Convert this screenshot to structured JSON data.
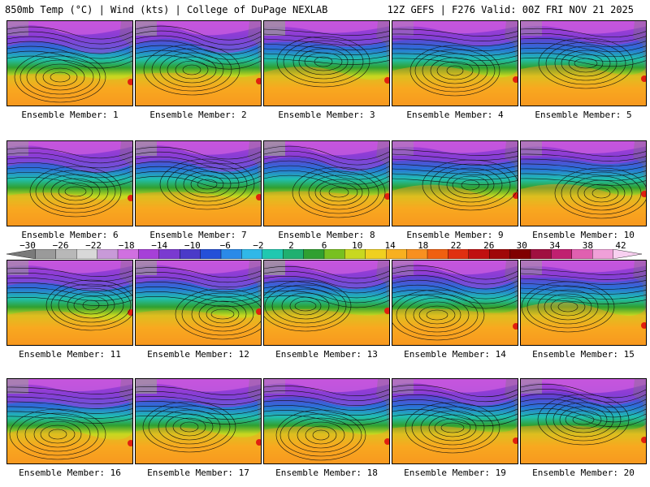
{
  "header": {
    "left": "850mb Temp (°C) | Wind (kts) | College of DuPage NEXLAB",
    "right": "12Z GEFS | F276 Valid: 00Z FRI NOV 21 2025"
  },
  "members": [
    "Ensemble Member: 1",
    "Ensemble Member: 2",
    "Ensemble Member: 3",
    "Ensemble Member: 4",
    "Ensemble Member: 5",
    "Ensemble Member: 6",
    "Ensemble Member: 7",
    "Ensemble Member: 8",
    "Ensemble Member: 9",
    "Ensemble Member: 10",
    "Ensemble Member: 11",
    "Ensemble Member: 12",
    "Ensemble Member: 13",
    "Ensemble Member: 14",
    "Ensemble Member: 15",
    "Ensemble Member: 16",
    "Ensemble Member: 17",
    "Ensemble Member: 18",
    "Ensemble Member: 19",
    "Ensemble Member: 20"
  ],
  "colorbar": {
    "ticks": [
      "−30",
      "−26",
      "−22",
      "−18",
      "−14",
      "−10",
      "−6",
      "−2",
      "2",
      "6",
      "10",
      "14",
      "18",
      "22",
      "26",
      "30",
      "34",
      "38",
      "42"
    ],
    "colors": [
      "#7a7a7a",
      "#9a9a9a",
      "#b8b8b8",
      "#d8d8d8",
      "#c89ad8",
      "#d070e0",
      "#a640d8",
      "#7a3ad0",
      "#4a3ac8",
      "#2450d8",
      "#2a8ae8",
      "#30b8e8",
      "#20c8b0",
      "#20b070",
      "#30a030",
      "#78c020",
      "#c8d820",
      "#f0d020",
      "#f8b020",
      "#f89020",
      "#f06010",
      "#e03010",
      "#c01010",
      "#a00808",
      "#800000",
      "#a01040",
      "#c02070",
      "#e060b0",
      "#f0a0d8",
      "#f8d0f0"
    ]
  }
}
